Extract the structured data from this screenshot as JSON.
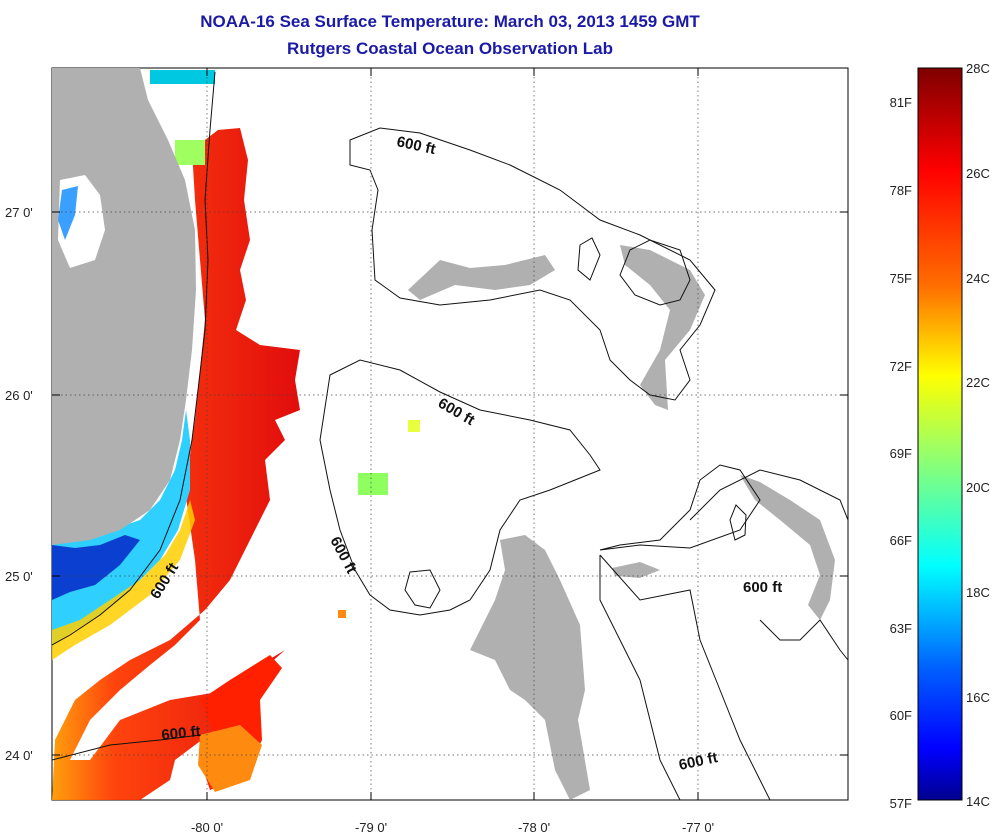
{
  "title": "NOAA-16 Sea Surface Temperature:  March 03, 2013 1459 GMT",
  "subtitle": "Rutgers Coastal Ocean Observation Lab",
  "axes": {
    "lat_labels": [
      "27 0'",
      "26 0'",
      "25 0'",
      "24 0'"
    ],
    "lon_labels": [
      "-80 0'",
      "-79 0'",
      "-78 0'",
      "-77 0'"
    ]
  },
  "contour_label": "600 ft",
  "colorbar": {
    "celsius": [
      "28C",
      "26C",
      "24C",
      "22C",
      "20C",
      "18C",
      "16C",
      "14C"
    ],
    "fahrenheit": [
      "81F",
      "78F",
      "75F",
      "72F",
      "69F",
      "66F",
      "63F",
      "60F",
      "57F"
    ],
    "range_c": [
      14,
      28
    ],
    "colors": [
      "#7f0000",
      "#ff0000",
      "#ff8000",
      "#ffff00",
      "#80ff80",
      "#00ffff",
      "#0080ff",
      "#0000ff",
      "#00008f"
    ]
  },
  "colors": {
    "title": "#1a1aa6",
    "land": "#b0b0b0",
    "contour": "#111111"
  }
}
